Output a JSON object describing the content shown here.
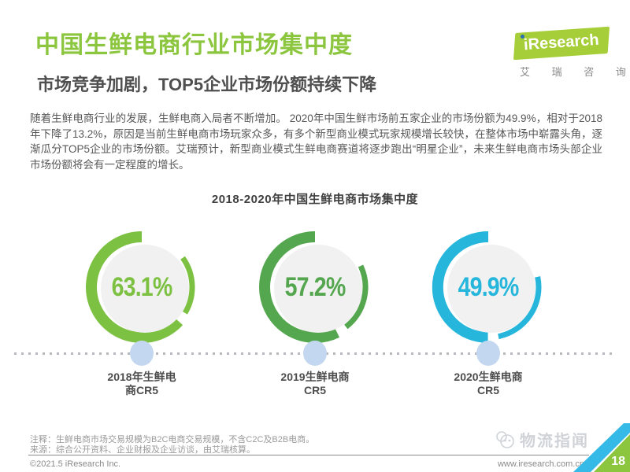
{
  "header": {
    "title": "中国生鲜电商行业市场集中度",
    "subtitle": "市场竞争加剧，TOP5企业市场份额持续下降",
    "title_color": "#8cc63f"
  },
  "logo": {
    "brand": "iResearch",
    "brand_cn": "艾 瑞 咨 询",
    "box_color": "#a6ce39",
    "dot_color": "#2a6db5"
  },
  "intro": {
    "paragraph": "随着生鲜电商行业的发展，生鲜电商入局者不断增加。 2020年中国生鲜市场前五家企业的市场份额为49.9%，相对于2018年下降了13.2%，原因是当前生鲜电商市场玩家众多，有多个新型商业模式玩家规模增长较快，在整体市场中崭露头角，逐渐瓜分TOP5企业的市场份额。艾瑞预计，新型商业模式生鲜电商赛道将逐步跑出“明星企业”，未来生鲜电商市场头部企业市场份额将会有一定程度的增长。"
  },
  "chart_data": {
    "type": "gauge",
    "title": "2018-2020年中国生鲜电商市场集中度",
    "unit": "%",
    "series": [
      {
        "label1": "2018年生鲜电",
        "label2": "商CR5",
        "value": 63.1,
        "display": "63.1%",
        "color": "#7dc142"
      },
      {
        "label1": "2019生鲜电商",
        "label2": "CR5",
        "value": 57.2,
        "display": "57.2%",
        "color": "#54a74e"
      },
      {
        "label1": "2020生鲜电商",
        "label2": "CR5",
        "value": 49.9,
        "display": "49.9%",
        "color": "#26b6dc"
      }
    ],
    "inner_circle_color": "#f1f1f1",
    "marker_color": "#c3d8f0",
    "dotline_color": "#b5b9bd",
    "legend_position": "none",
    "grid": false
  },
  "footer": {
    "note_line1": "注释：生鲜电商市场交易规模为B2C电商交易规模，不含C2C及B2B电商。",
    "note_line2": "来源：综合公开资料、企业财报及企业访谈，由艾瑞核算。",
    "copyright": "©2021.5 iResearch Inc.",
    "website": "www.iresearch.com.cn",
    "page_number": "18",
    "watermark": "物流指闻"
  }
}
